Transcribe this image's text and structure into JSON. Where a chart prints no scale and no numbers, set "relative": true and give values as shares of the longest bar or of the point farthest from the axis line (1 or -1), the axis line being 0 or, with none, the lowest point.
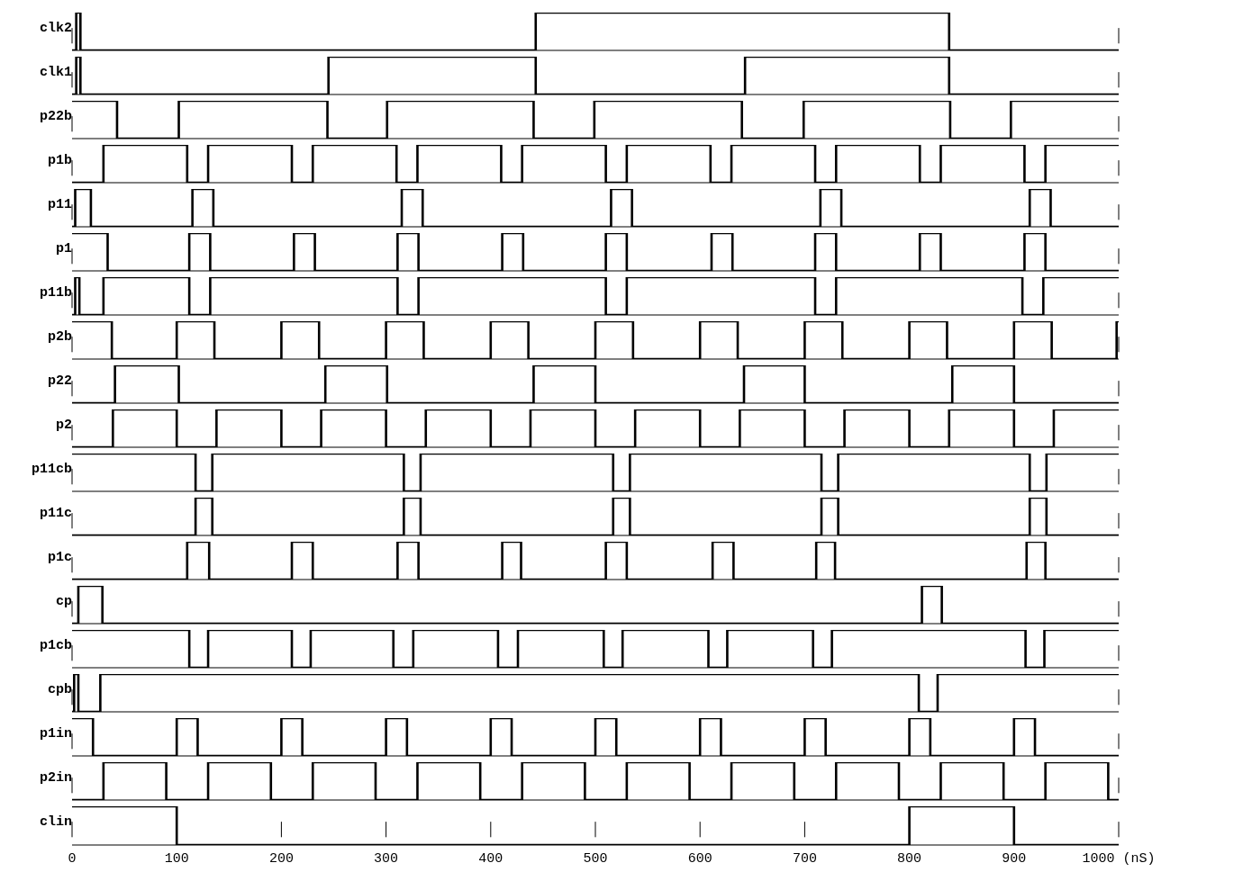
{
  "chart_data": [
    {
      "type": "step",
      "ylabel": "clk2",
      "relative": true,
      "color": "#000000",
      "x": [
        0,
        4,
        8,
        443,
        838,
        1000
      ],
      "values": [
        0,
        1,
        0,
        1,
        0,
        0
      ],
      "xlim": [
        0,
        1000
      ],
      "xticks": [
        0,
        100,
        200,
        300,
        400,
        500,
        600,
        700,
        800,
        900,
        1000
      ],
      "grid": "x",
      "tick_labels": false
    },
    {
      "type": "step",
      "ylabel": "clk1",
      "relative": true,
      "color": "#000000",
      "x": [
        0,
        4,
        8,
        245,
        443,
        643,
        838,
        1000
      ],
      "values": [
        0,
        1,
        0,
        1,
        0,
        1,
        0,
        0
      ],
      "xlim": [
        0,
        1000
      ],
      "xticks": [
        0,
        100,
        200,
        300,
        400,
        500,
        600,
        700,
        800,
        900,
        1000
      ],
      "grid": "x",
      "tick_labels": false
    },
    {
      "type": "step",
      "ylabel": "p22b",
      "relative": true,
      "color": "#000000",
      "x": [
        0,
        43,
        102,
        244,
        301,
        441,
        499,
        640,
        699,
        839,
        897,
        1000
      ],
      "values": [
        1,
        0,
        1,
        0,
        1,
        0,
        1,
        0,
        1,
        0,
        1,
        1
      ],
      "xlim": [
        0,
        1000
      ],
      "xticks": [
        0,
        100,
        200,
        300,
        400,
        500,
        600,
        700,
        800,
        900,
        1000
      ],
      "grid": "x",
      "tick_labels": false
    },
    {
      "type": "step",
      "ylabel": "p1b",
      "relative": true,
      "color": "#000000",
      "x": [
        0,
        30,
        110,
        130,
        210,
        230,
        310,
        330,
        410,
        430,
        510,
        530,
        610,
        630,
        710,
        730,
        810,
        830,
        910,
        930,
        1000
      ],
      "values": [
        0,
        1,
        0,
        1,
        0,
        1,
        0,
        1,
        0,
        1,
        0,
        1,
        0,
        1,
        0,
        1,
        0,
        1,
        0,
        1,
        1
      ],
      "xlim": [
        0,
        1000
      ],
      "xticks": [
        0,
        100,
        200,
        300,
        400,
        500,
        600,
        700,
        800,
        900,
        1000
      ],
      "grid": "x",
      "tick_labels": false
    },
    {
      "type": "step",
      "ylabel": "p11",
      "relative": true,
      "color": "#000000",
      "x": [
        0,
        3,
        18,
        115,
        135,
        315,
        335,
        515,
        535,
        715,
        735,
        915,
        935,
        1000
      ],
      "values": [
        0,
        1,
        0,
        1,
        0,
        1,
        0,
        1,
        0,
        1,
        0,
        1,
        0,
        0
      ],
      "xlim": [
        0,
        1000
      ],
      "xticks": [
        0,
        100,
        200,
        300,
        400,
        500,
        600,
        700,
        800,
        900,
        1000
      ],
      "grid": "x",
      "tick_labels": false
    },
    {
      "type": "step",
      "ylabel": "p1",
      "relative": true,
      "color": "#000000",
      "x": [
        0,
        34,
        112,
        132,
        212,
        232,
        311,
        331,
        411,
        431,
        510,
        530,
        611,
        631,
        710,
        730,
        810,
        830,
        910,
        930,
        1000
      ],
      "values": [
        1,
        0,
        1,
        0,
        1,
        0,
        1,
        0,
        1,
        0,
        1,
        0,
        1,
        0,
        1,
        0,
        1,
        0,
        1,
        0,
        0
      ],
      "xlim": [
        0,
        1000
      ],
      "xticks": [
        0,
        100,
        200,
        300,
        400,
        500,
        600,
        700,
        800,
        900,
        1000
      ],
      "grid": "x",
      "tick_labels": false
    },
    {
      "type": "step",
      "ylabel": "p11b",
      "relative": true,
      "color": "#000000",
      "x": [
        0,
        3,
        7,
        30,
        112,
        132,
        311,
        331,
        510,
        530,
        710,
        730,
        908,
        928,
        1000
      ],
      "values": [
        0,
        1,
        0,
        1,
        0,
        1,
        0,
        1,
        0,
        1,
        0,
        1,
        0,
        1,
        1
      ],
      "xlim": [
        0,
        1000
      ],
      "xticks": [
        0,
        100,
        200,
        300,
        400,
        500,
        600,
        700,
        800,
        900,
        1000
      ],
      "grid": "x",
      "tick_labels": false
    },
    {
      "type": "step",
      "ylabel": "p2b",
      "relative": true,
      "color": "#000000",
      "x": [
        0,
        38,
        100,
        136,
        200,
        236,
        300,
        336,
        400,
        436,
        500,
        536,
        600,
        636,
        700,
        736,
        800,
        836,
        900,
        936,
        998,
        1000
      ],
      "values": [
        1,
        0,
        1,
        0,
        1,
        0,
        1,
        0,
        1,
        0,
        1,
        0,
        1,
        0,
        1,
        0,
        1,
        0,
        1,
        0,
        1,
        1
      ],
      "xlim": [
        0,
        1000
      ],
      "xticks": [
        0,
        100,
        200,
        300,
        400,
        500,
        600,
        700,
        800,
        900,
        1000
      ],
      "grid": "x",
      "tick_labels": false
    },
    {
      "type": "step",
      "ylabel": "p22",
      "relative": true,
      "color": "#000000",
      "x": [
        0,
        41,
        102,
        242,
        301,
        441,
        500,
        642,
        700,
        841,
        900,
        1000
      ],
      "values": [
        0,
        1,
        0,
        1,
        0,
        1,
        0,
        1,
        0,
        1,
        0,
        0
      ],
      "xlim": [
        0,
        1000
      ],
      "xticks": [
        0,
        100,
        200,
        300,
        400,
        500,
        600,
        700,
        800,
        900,
        1000
      ],
      "grid": "x",
      "tick_labels": false
    },
    {
      "type": "step",
      "ylabel": "p2",
      "relative": true,
      "color": "#000000",
      "x": [
        0,
        39,
        100,
        138,
        200,
        238,
        300,
        338,
        400,
        438,
        500,
        538,
        600,
        638,
        700,
        738,
        800,
        838,
        900,
        938,
        1000
      ],
      "values": [
        0,
        1,
        0,
        1,
        0,
        1,
        0,
        1,
        0,
        1,
        0,
        1,
        0,
        1,
        0,
        1,
        0,
        1,
        0,
        1,
        1
      ],
      "xlim": [
        0,
        1000
      ],
      "xticks": [
        0,
        100,
        200,
        300,
        400,
        500,
        600,
        700,
        800,
        900,
        1000
      ],
      "grid": "x",
      "tick_labels": false
    },
    {
      "type": "step",
      "ylabel": "p11cb",
      "relative": true,
      "color": "#000000",
      "x": [
        0,
        118,
        134,
        317,
        333,
        517,
        533,
        716,
        732,
        915,
        931,
        1000
      ],
      "values": [
        1,
        0,
        1,
        0,
        1,
        0,
        1,
        0,
        1,
        0,
        1,
        1
      ],
      "xlim": [
        0,
        1000
      ],
      "xticks": [
        0,
        100,
        200,
        300,
        400,
        500,
        600,
        700,
        800,
        900,
        1000
      ],
      "grid": "x",
      "tick_labels": false
    },
    {
      "type": "step",
      "ylabel": "p11c",
      "relative": true,
      "color": "#000000",
      "x": [
        0,
        118,
        134,
        317,
        333,
        517,
        533,
        716,
        732,
        915,
        931,
        1000
      ],
      "values": [
        0,
        1,
        0,
        1,
        0,
        1,
        0,
        1,
        0,
        1,
        0,
        0
      ],
      "xlim": [
        0,
        1000
      ],
      "xticks": [
        0,
        100,
        200,
        300,
        400,
        500,
        600,
        700,
        800,
        900,
        1000
      ],
      "grid": "x",
      "tick_labels": false
    },
    {
      "type": "step",
      "ylabel": "p1c",
      "relative": true,
      "color": "#000000",
      "x": [
        0,
        110,
        131,
        210,
        230,
        311,
        331,
        411,
        429,
        510,
        530,
        612,
        632,
        711,
        729,
        912,
        930,
        1000
      ],
      "values": [
        0,
        1,
        0,
        1,
        0,
        1,
        0,
        1,
        0,
        1,
        0,
        1,
        0,
        1,
        0,
        1,
        0,
        0
      ],
      "xlim": [
        0,
        1000
      ],
      "xticks": [
        0,
        100,
        200,
        300,
        400,
        500,
        600,
        700,
        800,
        900,
        1000
      ],
      "grid": "x",
      "tick_labels": false
    },
    {
      "type": "step",
      "ylabel": "cp",
      "relative": true,
      "color": "#000000",
      "x": [
        0,
        6,
        29,
        812,
        831,
        1000
      ],
      "values": [
        0,
        1,
        0,
        1,
        0,
        0
      ],
      "xlim": [
        0,
        1000
      ],
      "xticks": [
        0,
        100,
        200,
        300,
        400,
        500,
        600,
        700,
        800,
        900,
        1000
      ],
      "grid": "x",
      "tick_labels": false
    },
    {
      "type": "step",
      "ylabel": "p1cb",
      "relative": true,
      "color": "#000000",
      "x": [
        0,
        112,
        130,
        210,
        228,
        307,
        326,
        407,
        426,
        508,
        526,
        608,
        626,
        708,
        726,
        911,
        929,
        1000
      ],
      "values": [
        1,
        0,
        1,
        0,
        1,
        0,
        1,
        0,
        1,
        0,
        1,
        0,
        1,
        0,
        1,
        0,
        1,
        1
      ],
      "xlim": [
        0,
        1000
      ],
      "xticks": [
        0,
        100,
        200,
        300,
        400,
        500,
        600,
        700,
        800,
        900,
        1000
      ],
      "grid": "x",
      "tick_labels": false
    },
    {
      "type": "step",
      "ylabel": "cpb",
      "relative": true,
      "color": "#000000",
      "x": [
        0,
        2,
        6,
        27,
        809,
        827,
        1000
      ],
      "values": [
        0,
        1,
        0,
        1,
        0,
        1,
        1
      ],
      "xlim": [
        0,
        1000
      ],
      "xticks": [
        0,
        100,
        200,
        300,
        400,
        500,
        600,
        700,
        800,
        900,
        1000
      ],
      "grid": "x",
      "tick_labels": false
    },
    {
      "type": "step",
      "ylabel": "p1in",
      "relative": true,
      "color": "#000000",
      "x": [
        0,
        20,
        100,
        120,
        200,
        220,
        300,
        320,
        400,
        420,
        500,
        520,
        600,
        620,
        700,
        720,
        800,
        820,
        900,
        920,
        1000
      ],
      "values": [
        1,
        0,
        1,
        0,
        1,
        0,
        1,
        0,
        1,
        0,
        1,
        0,
        1,
        0,
        1,
        0,
        1,
        0,
        1,
        0,
        0
      ],
      "xlim": [
        0,
        1000
      ],
      "xticks": [
        0,
        100,
        200,
        300,
        400,
        500,
        600,
        700,
        800,
        900,
        1000
      ],
      "grid": "x",
      "tick_labels": false
    },
    {
      "type": "step",
      "ylabel": "p2in",
      "relative": true,
      "color": "#000000",
      "x": [
        0,
        30,
        90,
        130,
        190,
        230,
        290,
        330,
        390,
        430,
        490,
        530,
        590,
        630,
        690,
        730,
        790,
        830,
        890,
        930,
        990,
        1000
      ],
      "values": [
        0,
        1,
        0,
        1,
        0,
        1,
        0,
        1,
        0,
        1,
        0,
        1,
        0,
        1,
        0,
        1,
        0,
        1,
        0,
        1,
        0,
        0
      ],
      "xlim": [
        0,
        1000
      ],
      "xticks": [
        0,
        100,
        200,
        300,
        400,
        500,
        600,
        700,
        800,
        900,
        1000
      ],
      "grid": "x",
      "tick_labels": false
    },
    {
      "type": "step",
      "ylabel": "clin",
      "relative": true,
      "color": "#000000",
      "x": [
        0,
        100,
        800,
        900,
        1000
      ],
      "values": [
        1,
        0,
        1,
        0,
        0
      ],
      "xlim": [
        0,
        1000
      ],
      "xticks": [
        0,
        100,
        200,
        300,
        400,
        500,
        600,
        700,
        800,
        900,
        {
          "value": 1000,
          "label": "1000 (nS)"
        }
      ],
      "grid": "x",
      "tick_labels": "x"
    }
  ]
}
